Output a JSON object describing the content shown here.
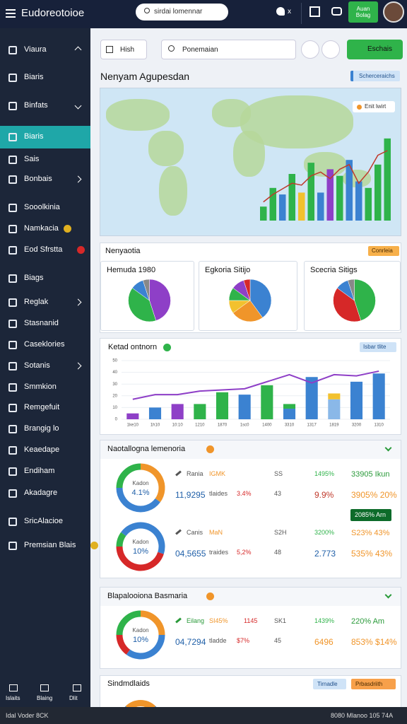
{
  "header": {
    "logo": "Eudoreotoioe",
    "search": "sirdai lomennar",
    "icon_label": "x",
    "button": "Auan Bolag"
  },
  "sidebar": {
    "items": [
      {
        "label": "Viaura",
        "chevron": "up"
      },
      {
        "label": "Biaris"
      },
      {
        "label": "Binfats",
        "chevron": "down"
      },
      {
        "label": "Biaris",
        "active": true
      },
      {
        "label": "Sais"
      },
      {
        "label": "Bonbais",
        "chevron": "right"
      },
      {
        "label": "Sooolkinia"
      },
      {
        "label": "Namkacia",
        "dot": "#e0b020"
      },
      {
        "label": "Eod Sfrstta",
        "dot": "#d62828"
      },
      {
        "label": "Biags"
      },
      {
        "label": "Reglak",
        "chevron": "right"
      },
      {
        "label": "Stasnanid"
      },
      {
        "label": "Caseklories"
      },
      {
        "label": "Sotanis",
        "chevron": "right"
      },
      {
        "label": "Smmkion"
      },
      {
        "label": "Remgefuit"
      },
      {
        "label": "Brangig lo"
      },
      {
        "label": "Keaedape"
      },
      {
        "label": "Endiham"
      },
      {
        "label": "Akadagre"
      },
      {
        "label": "SricAlacioe"
      },
      {
        "label": "Premsian Blais",
        "dot": "#e0b020"
      }
    ],
    "bottom": [
      "Islaits",
      "Blaing",
      "Dlit"
    ]
  },
  "toolbar": {
    "filter": "Hish",
    "search": "Ponemaian",
    "button": "Eschais"
  },
  "map_section": {
    "title": "Nenyam Agupesdan",
    "badge": "Scherceraichs",
    "legend": "Enit lwirt",
    "chart": {
      "type": "bar",
      "ylim": [
        0,
        100
      ],
      "values": [
        15,
        35,
        28,
        50,
        30,
        62,
        30,
        55,
        48,
        65,
        42,
        35,
        60,
        88
      ],
      "colors": [
        "#2fb34a",
        "#2fb34a",
        "#3b82d1",
        "#2fb34a",
        "#f2c12e",
        "#2fb34a",
        "#3b82d1",
        "#8e3fc7",
        "#2fb34a",
        "#3b82d1",
        "#3b82d1",
        "#2fb34a",
        "#2fb34a",
        "#2fb34a"
      ],
      "trend": [
        20,
        28,
        34,
        40,
        38,
        48,
        52,
        45,
        55,
        60,
        40,
        52,
        70,
        75
      ],
      "trend_color": "#c0392b"
    }
  },
  "pie_section": {
    "title": "Nenyaotia",
    "badge": "Conrleia",
    "cards": [
      {
        "title": "Hemuda 1980",
        "values": [
          45,
          40,
          10,
          5
        ],
        "colors": [
          "#8e3fc7",
          "#2fb34a",
          "#3b82d1",
          "#888888"
        ]
      },
      {
        "title": "Egkoria Sitijo",
        "values": [
          40,
          25,
          10,
          10,
          10,
          5
        ],
        "colors": [
          "#3b82d1",
          "#f0952a",
          "#f2c12e",
          "#2fb34a",
          "#8e3fc7",
          "#d62828"
        ]
      },
      {
        "title": "Scecria Sitigs",
        "values": [
          45,
          40,
          10,
          5
        ],
        "colors": [
          "#2fb34a",
          "#d62828",
          "#3b82d1",
          "#888888"
        ]
      }
    ]
  },
  "trend_section": {
    "title": "Ketad ontnorn",
    "badge": "Isbar tlite",
    "chart": {
      "type": "bar",
      "ylim": [
        0,
        50
      ],
      "yticks": [
        0,
        10,
        20,
        30,
        40,
        50
      ],
      "categories": [
        "1ke10",
        "1h10",
        "10:10",
        "1210",
        "1870",
        "1sc0",
        "1400",
        "3310",
        "1317",
        "1819",
        "3200",
        "1310"
      ],
      "values": [
        5,
        10,
        13,
        13,
        23,
        21,
        29,
        9,
        36,
        17,
        32,
        39
      ],
      "colors": [
        "#8e3fc7",
        "#3b82d1",
        "#8e3fc7",
        "#2fb34a",
        "#2fb34a",
        "#3b82d1",
        "#2fb34a",
        "#3b82d1",
        "#3b82d1",
        "#8ab8e8",
        "#3b82d1",
        "#3b82d1"
      ],
      "top_values": [
        null,
        null,
        null,
        null,
        null,
        null,
        null,
        4,
        null,
        5,
        null,
        null
      ],
      "top_colors": [
        null,
        null,
        null,
        null,
        null,
        null,
        null,
        "#2fb34a",
        null,
        "#f2c12e",
        null,
        null
      ],
      "line": [
        17,
        21,
        21,
        24,
        25,
        26,
        32,
        38,
        31,
        38,
        37,
        41
      ],
      "line_color": "#8e3fc7"
    }
  },
  "donut_sections": [
    {
      "title": "Naotallogna lemenoria",
      "rows": [
        {
          "donut": {
            "values": [
              35,
              40,
              25
            ],
            "colors": [
              "#f0952a",
              "#3b82d1",
              "#2fb34a"
            ],
            "label": "Kadon",
            "value_label": "4.1%"
          },
          "line1": [
            {
              "text": "Rania",
              "color": "#555"
            },
            {
              "text": "IGMK",
              "color": "#f0952a"
            },
            {
              "text": "SS",
              "color": "#555"
            },
            {
              "text": "1495%",
              "color": "#2fb34a"
            },
            {
              "text": "33905 Ikun",
              "color": "#2a9a3a"
            }
          ],
          "line2": [
            {
              "text": "11,9295",
              "color": "#1f5fa8"
            },
            {
              "text": "tlaides",
              "color": "#555"
            },
            {
              "text": "3.4%",
              "color": "#d62828"
            },
            {
              "text": "43",
              "color": "#555"
            },
            {
              "text": "9.9%",
              "color": "#c0392b"
            },
            {
              "text": "3905% 20%",
              "color": "#f0952a"
            }
          ],
          "tag": "2085% Arn"
        },
        {
          "donut": {
            "values": [
              30,
              45,
              10,
              15
            ],
            "colors": [
              "#3b82d1",
              "#d62828",
              "#2fb34a",
              "#3b82d1"
            ],
            "label": "Kadon",
            "value_label": "10%"
          },
          "line1": [
            {
              "text": "Canis",
              "color": "#555"
            },
            {
              "text": "MaN",
              "color": "#f0952a"
            },
            {
              "text": "S2H",
              "color": "#555"
            },
            {
              "text": "3200%",
              "color": "#2fb34a"
            },
            {
              "text": "S23% 43%",
              "color": "#f0952a"
            }
          ],
          "line2": [
            {
              "text": "04,5655",
              "color": "#1f5fa8"
            },
            {
              "text": "traides",
              "color": "#555"
            },
            {
              "text": "5,2%",
              "color": "#d62828"
            },
            {
              "text": "48",
              "color": "#555"
            },
            {
              "text": "2.773",
              "color": "#1f5fa8"
            },
            {
              "text": "535% 43%",
              "color": "#f0952a"
            }
          ]
        }
      ]
    },
    {
      "title": "Blapalooiona Basmaria",
      "rows": [
        {
          "donut": {
            "values": [
              25,
              35,
              15,
              25
            ],
            "colors": [
              "#f0952a",
              "#3b82d1",
              "#d62828",
              "#2fb34a"
            ],
            "label": "Kadon",
            "value_label": "10%"
          },
          "line1": [
            {
              "text": "Eilang",
              "color": "#2a9a3a"
            },
            {
              "text": "SI45%",
              "color": "#f0952a"
            },
            {
              "text": "1145",
              "color": "#d62828"
            },
            {
              "text": "SK1",
              "color": "#555"
            },
            {
              "text": "1439%",
              "color": "#2fb34a"
            },
            {
              "text": "220% Am",
              "color": "#2a9a3a"
            }
          ],
          "line2": [
            {
              "text": "04,7294",
              "color": "#1f5fa8"
            },
            {
              "text": "tladde",
              "color": "#555"
            },
            {
              "text": "$7%",
              "color": "#d62828"
            },
            {
              "text": "45",
              "color": "#555"
            },
            {
              "text": "6496",
              "color": "#f0952a"
            },
            {
              "text": "853% $14%",
              "color": "#f0952a"
            }
          ]
        }
      ]
    }
  ],
  "bottom_section": {
    "title": "Sindmdlaids",
    "badges": [
      "Tirnadle",
      "Prbasdriith"
    ]
  },
  "footer": {
    "left": "Idal Voder 8CK",
    "right": "8080 Mlanoo 105 74A"
  }
}
